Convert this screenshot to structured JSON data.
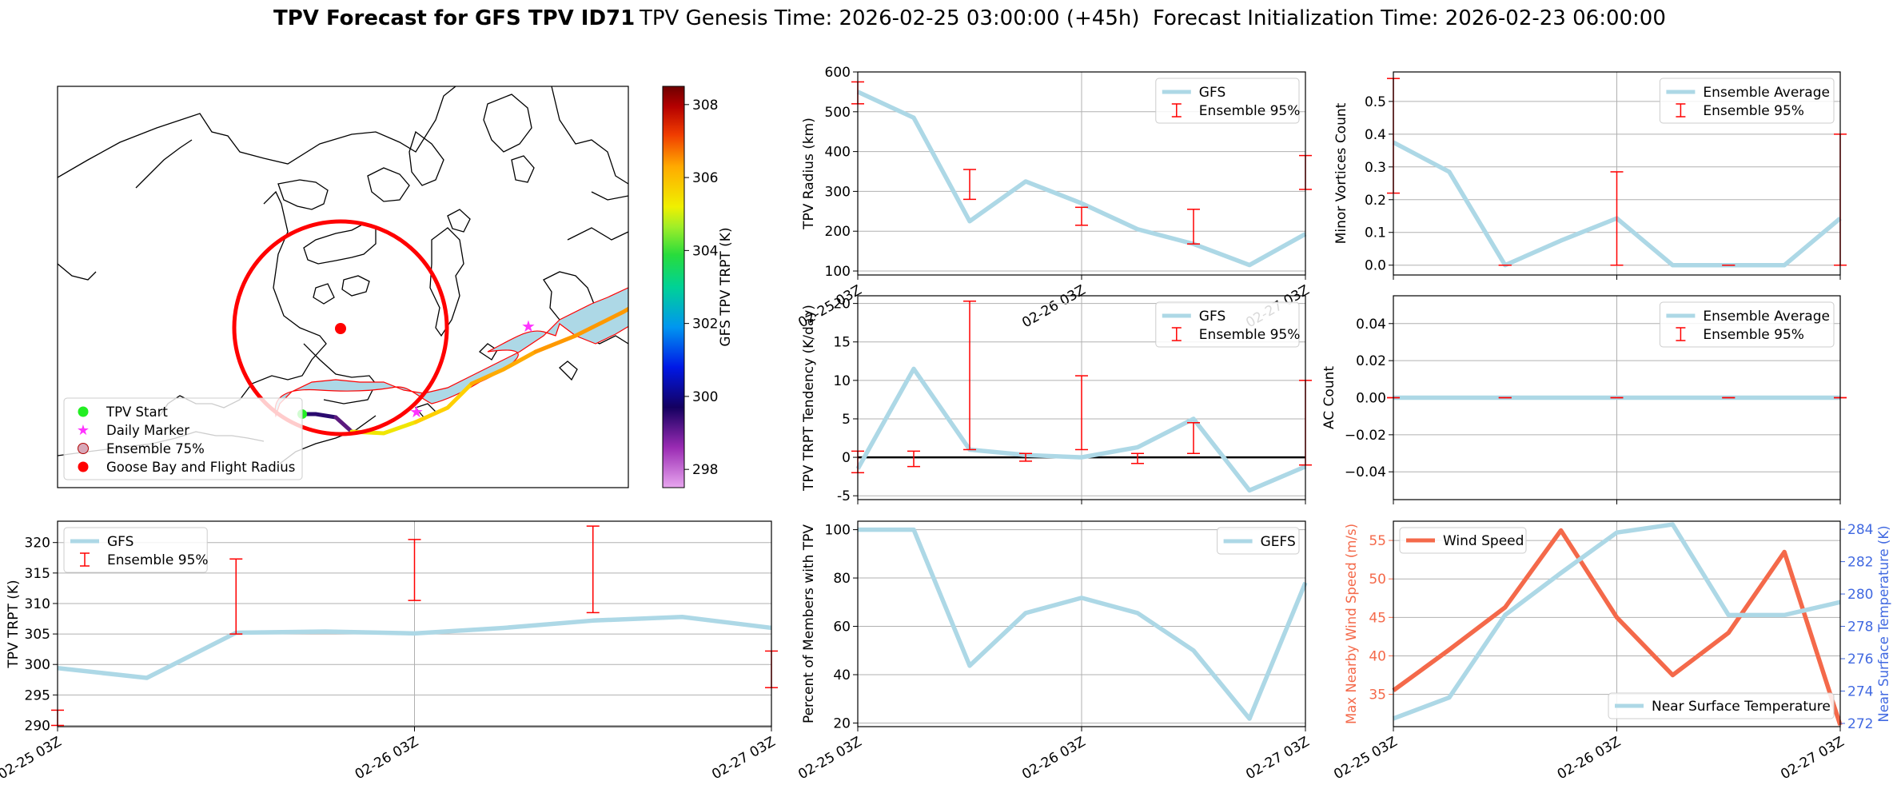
{
  "figure": {
    "title_bold": "TPV Forecast for GFS TPV ID71",
    "title_genesis": "TPV Genesis Time: 2026-02-25 03:00:00 (+45h)",
    "title_init": "Forecast Initialization Time: 2026-02-23 06:00:00"
  },
  "colors": {
    "line": "#add8e6",
    "err": "#ff0000",
    "wind": "#f4694a",
    "temp_axis": "#4169e1",
    "magenta": "#ff33ff",
    "green": "#22ee22",
    "ensemble_fill": "#add8e6"
  },
  "map": {
    "legend": [
      "TPV Start",
      "Daily Marker",
      "Ensemble 75%",
      "Goose Bay and Flight Radius"
    ],
    "colorbar_label": "GFS TPV TRPT (K)",
    "colorbar_ticks": [
      298,
      300,
      302,
      304,
      306,
      308
    ],
    "colorbar_range": [
      297.5,
      308.5
    ]
  },
  "chart_data": [
    {
      "id": "radius",
      "type": "line",
      "ylabel": "TPV Radius (km)",
      "ylim": [
        90,
        600
      ],
      "yticks": [
        100,
        200,
        300,
        400,
        500,
        600
      ],
      "x": [
        0,
        6,
        12,
        18,
        24,
        30,
        36,
        42,
        48
      ],
      "series": [
        {
          "name": "GFS",
          "values": [
            550,
            485,
            225,
            325,
            270,
            205,
            168,
            115,
            193
          ]
        }
      ],
      "errorbars": {
        "name": "Ensemble 95%",
        "x": [
          0,
          12,
          24,
          36,
          48
        ],
        "low": [
          520,
          280,
          215,
          168,
          305
        ],
        "high": [
          575,
          355,
          260,
          255,
          390
        ]
      },
      "xticks": [
        "02-25 03Z",
        "02-26 03Z",
        "02-27 03Z"
      ],
      "legend": [
        "GFS",
        "Ensemble 95%"
      ]
    },
    {
      "id": "minor",
      "type": "line",
      "ylabel": "Minor Vortices Count",
      "ylim": [
        -0.03,
        0.59
      ],
      "yticks": [
        "0.0",
        "0.1",
        "0.2",
        "0.3",
        "0.4",
        "0.5"
      ],
      "x": [
        0,
        6,
        12,
        18,
        24,
        30,
        36,
        42,
        48
      ],
      "series": [
        {
          "name": "Ensemble Average",
          "values": [
            0.375,
            0.285,
            0.0,
            0.075,
            0.143,
            0.0,
            0.0,
            0.0,
            0.143
          ]
        }
      ],
      "errorbars": {
        "name": "Ensemble 95%",
        "x": [
          0,
          12,
          24,
          36,
          48
        ],
        "low": [
          0.22,
          0.0,
          0.0,
          0.0,
          0.0
        ],
        "high": [
          0.57,
          0.0,
          0.285,
          0.0,
          0.4
        ]
      },
      "legend": [
        "Ensemble Average",
        "Ensemble 95%"
      ]
    },
    {
      "id": "tendency",
      "type": "line",
      "ylabel": "TPV TRPT Tendency (K/day)",
      "ylim": [
        -5.5,
        21
      ],
      "yticks": [
        -5,
        0,
        5,
        10,
        15,
        20
      ],
      "x": [
        0,
        6,
        12,
        18,
        24,
        30,
        36,
        42,
        48
      ],
      "series": [
        {
          "name": "GFS",
          "values": [
            -1.5,
            11.5,
            1.0,
            0.3,
            0.0,
            1.3,
            5.0,
            -4.3,
            -1.2
          ]
        }
      ],
      "errorbars": {
        "name": "Ensemble 95%",
        "x": [
          0,
          6,
          12,
          18,
          24,
          30,
          36,
          48
        ],
        "low": [
          -2.0,
          -1.2,
          1.0,
          -0.5,
          1.0,
          -0.8,
          0.5,
          -1.0
        ],
        "high": [
          0.8,
          0.8,
          20.3,
          0.5,
          10.6,
          0.5,
          4.5,
          10.0
        ]
      },
      "zero_line": true,
      "legend": [
        "GFS",
        "Ensemble 95%"
      ]
    },
    {
      "id": "ac",
      "type": "line",
      "ylabel": "AC Count",
      "ylim": [
        -0.055,
        0.055
      ],
      "yticks": [
        "−0.04",
        "−0.02",
        "0.00",
        "0.02",
        "0.04"
      ],
      "ytick_values": [
        -0.04,
        -0.02,
        0,
        0.02,
        0.04
      ],
      "x": [
        0,
        6,
        12,
        18,
        24,
        30,
        36,
        42,
        48
      ],
      "series": [
        {
          "name": "Ensemble Average",
          "values": [
            0,
            0,
            0,
            0,
            0,
            0,
            0,
            0,
            0
          ]
        }
      ],
      "errorbars": {
        "name": "Ensemble 95%",
        "x": [
          0,
          12,
          24,
          36,
          48
        ],
        "low": [
          0,
          0,
          0,
          0,
          0
        ],
        "high": [
          0,
          0,
          0,
          0,
          0
        ]
      },
      "legend": [
        "Ensemble Average",
        "Ensemble 95%"
      ]
    },
    {
      "id": "trpt",
      "type": "line",
      "ylabel": "TPV TRPT (K)",
      "ylim": [
        289.8,
        323.5
      ],
      "yticks": [
        290,
        295,
        300,
        305,
        310,
        315,
        320
      ],
      "x": [
        0,
        6,
        12,
        18,
        24,
        30,
        36,
        42,
        48
      ],
      "series": [
        {
          "name": "GFS",
          "values": [
            299.4,
            297.8,
            305.2,
            305.4,
            305.1,
            306.0,
            307.2,
            307.8,
            306.0
          ]
        }
      ],
      "errorbars": {
        "name": "Ensemble 95%",
        "x": [
          0,
          12,
          24,
          36,
          48
        ],
        "low": [
          290.0,
          305.0,
          310.5,
          308.5,
          296.2
        ],
        "high": [
          292.5,
          317.3,
          320.5,
          322.7,
          302.2
        ]
      },
      "xticks": [
        "02-25 03Z",
        "02-26 03Z",
        "02-27 03Z"
      ],
      "legend": [
        "GFS",
        "Ensemble 95%"
      ]
    },
    {
      "id": "percent",
      "type": "line",
      "ylabel": "Percent of Members with TPV",
      "ylim": [
        18.5,
        103.5
      ],
      "yticks": [
        20,
        40,
        60,
        80,
        100
      ],
      "x": [
        0,
        6,
        12,
        18,
        24,
        30,
        36,
        42,
        48
      ],
      "series": [
        {
          "name": "GEFS",
          "values": [
            100,
            100,
            43.7,
            65.5,
            71.8,
            65.5,
            50,
            21.8,
            78.1
          ]
        }
      ],
      "xticks": [
        "02-25 03Z",
        "02-26 03Z",
        "02-27 03Z"
      ],
      "legend": [
        "GEFS"
      ]
    },
    {
      "id": "wind_temp",
      "type": "line",
      "ylabel_left": "Max Nearby Wind Speed (m/s)",
      "ylabel_right": "Near Surface Temperature (K)",
      "ylim_left": [
        30.8,
        57.5
      ],
      "yticks_left": [
        35,
        40,
        45,
        50,
        55
      ],
      "ylim_right": [
        271.8,
        284.5
      ],
      "yticks_right": [
        272,
        274,
        276,
        278,
        280,
        282,
        284
      ],
      "x": [
        0,
        6,
        12,
        18,
        24,
        30,
        36,
        42,
        48
      ],
      "series": [
        {
          "name": "Wind Speed",
          "axis": "left",
          "values": [
            35.5,
            40.8,
            46.3,
            56.3,
            45.0,
            37.5,
            43.0,
            53.5,
            31.0
          ]
        },
        {
          "name": "Near Surface Temperature",
          "axis": "right",
          "values": [
            272.3,
            273.6,
            278.7,
            281.3,
            283.8,
            284.3,
            278.7,
            278.7,
            279.5
          ]
        }
      ],
      "xticks": [
        "02-25 03Z",
        "02-26 03Z",
        "02-27 03Z"
      ],
      "legend_left": "Wind Speed",
      "legend_right": "Near Surface Temperature"
    }
  ]
}
